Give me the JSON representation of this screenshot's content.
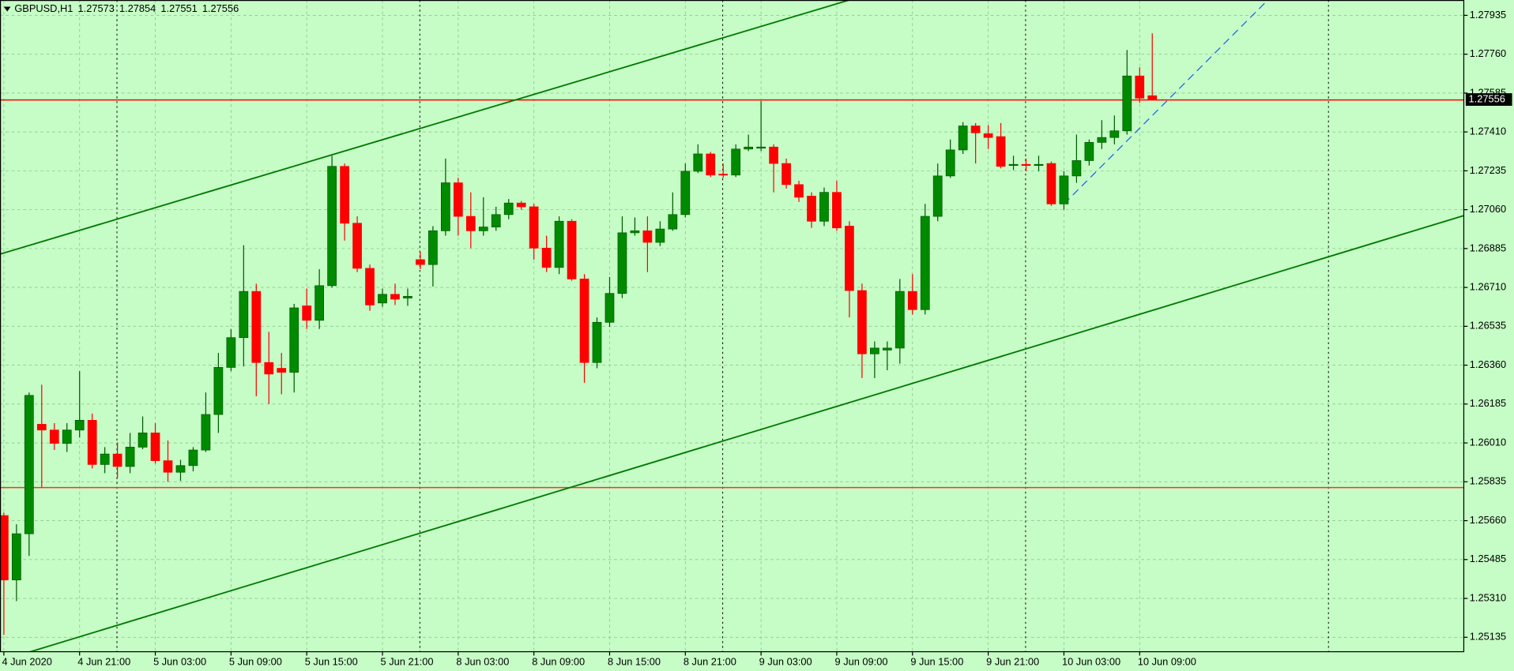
{
  "chart_data": {
    "type": "candlestick",
    "symbol": "GBPUSD,H1",
    "x": [
      "4 Jun 2020",
      null,
      null,
      null,
      null,
      null,
      "4 Jun 21:00",
      null,
      null,
      null,
      null,
      null,
      "5 Jun 03:00",
      null,
      null,
      null,
      null,
      null,
      "5 Jun 09:00",
      null,
      null,
      null,
      null,
      null,
      "5 Jun 15:00",
      null,
      null,
      null,
      null,
      null,
      "5 Jun 21:00",
      null,
      null,
      null,
      null,
      null,
      "8 Jun 03:00",
      null,
      null,
      null,
      null,
      null,
      "8 Jun 09:00",
      null,
      null,
      null,
      null,
      null,
      "8 Jun 15:00",
      null,
      null,
      null,
      null,
      null,
      "8 Jun 21:00",
      null,
      null,
      null,
      null,
      null,
      "9 Jun 03:00",
      null,
      null,
      null,
      null,
      null,
      "9 Jun 09:00",
      null,
      null,
      null,
      null,
      null,
      "9 Jun 15:00",
      null,
      null,
      null,
      null,
      null,
      "9 Jun 21:00",
      null,
      null,
      null,
      null,
      null,
      "10 Jun 03:00",
      null,
      null,
      null,
      null,
      null,
      "10 Jun 09:00",
      null
    ],
    "open": [
      1.25683,
      1.25393,
      1.25601,
      1.26094,
      1.26068,
      1.26008,
      1.26068,
      1.26112,
      1.25913,
      1.2596,
      1.25904,
      1.25991,
      1.26055,
      1.2593,
      1.25878,
      1.25908,
      1.25978,
      1.26138,
      1.2635,
      1.26484,
      1.26692,
      1.26372,
      1.26346,
      1.26328,
      1.26627,
      1.26562,
      1.26718,
      1.27255,
      1.26999,
      1.26796,
      1.2664,
      1.26679,
      1.26662,
      1.26835,
      1.26813,
      1.26965,
      1.27181,
      1.2703,
      1.26965,
      1.26982,
      1.27038,
      1.2709,
      1.27073,
      1.26887,
      1.268,
      1.27008,
      1.26748,
      1.26372,
      1.26553,
      1.26683,
      1.26956,
      1.26965,
      1.26913,
      1.26973,
      1.27038,
      1.27233,
      1.27311,
      1.2722,
      1.27216,
      1.27333,
      1.27337,
      1.27342,
      1.27268,
      1.27173,
      1.27121,
      1.27008,
      1.27138,
      1.26986,
      1.26696,
      1.26411,
      1.26428,
      1.26437,
      1.26692,
      1.2661,
      1.2703,
      1.27212,
      1.27329,
      1.27437,
      1.27402,
      1.27389,
      1.27259,
      1.27264,
      1.27259,
      1.27268,
      1.27086,
      1.27212,
      1.27281,
      1.27363,
      1.27385,
      1.27415,
      1.27662,
      1.27573
    ],
    "high": [
      1.25696,
      1.25644,
      1.26237,
      1.26272,
      1.26099,
      1.26099,
      1.26333,
      1.26142,
      1.25991,
      1.26012,
      1.26055,
      1.26129,
      1.26099,
      1.26021,
      1.25934,
      1.25991,
      1.26237,
      1.26415,
      1.26523,
      1.269,
      1.26727,
      1.2651,
      1.26415,
      1.26636,
      1.26705,
      1.26792,
      1.27303,
      1.27268,
      1.2703,
      1.26813,
      1.26705,
      1.26727,
      1.26705,
      1.2687,
      1.26986,
      1.2729,
      1.27203,
      1.27138,
      1.27116,
      1.27073,
      1.27108,
      1.27099,
      1.27086,
      1.26943,
      1.2703,
      1.27017,
      1.2677,
      1.26575,
      1.26757,
      1.2703,
      1.27025,
      1.2703,
      1.27008,
      1.27138,
      1.27268,
      1.27354,
      1.2732,
      1.27268,
      1.27354,
      1.27398,
      1.27549,
      1.27354,
      1.2729,
      1.2719,
      1.27138,
      1.2716,
      1.2719,
      1.27008,
      1.26727,
      1.26467,
      1.26467,
      1.26748,
      1.2677,
      1.27086,
      1.27268,
      1.27376,
      1.27454,
      1.2745,
      1.27441,
      1.2745,
      1.27303,
      1.2729,
      1.27303,
      1.27277,
      1.27233,
      1.27398,
      1.27376,
      1.27463,
      1.27484,
      1.27779,
      1.27701,
      1.27854
    ],
    "low": [
      1.25146,
      1.25298,
      1.25501,
      1.25809,
      1.25978,
      1.25969,
      1.26034,
      1.25895,
      1.25874,
      1.25852,
      1.25874,
      1.25982,
      1.25917,
      1.25835,
      1.25839,
      1.25882,
      1.25969,
      1.26055,
      1.26333,
      1.26354,
      1.2622,
      1.26185,
      1.26229,
      1.26237,
      1.26523,
      1.26523,
      1.26709,
      1.26921,
      1.26779,
      1.26605,
      1.26623,
      1.26631,
      1.26627,
      1.26792,
      1.26714,
      1.26943,
      1.26943,
      1.26887,
      1.26943,
      1.26965,
      1.27017,
      1.2706,
      1.26835,
      1.26779,
      1.2677,
      1.2674,
      1.26281,
      1.26346,
      1.26532,
      1.26662,
      1.26943,
      1.26779,
      1.26896,
      1.26965,
      1.27025,
      1.27225,
      1.27207,
      1.27203,
      1.27207,
      1.27324,
      1.27324,
      1.27138,
      1.27155,
      1.27095,
      1.26978,
      1.26986,
      1.26965,
      1.26575,
      1.26302,
      1.26302,
      1.26337,
      1.26367,
      1.26588,
      1.26588,
      1.27008,
      1.27203,
      1.27311,
      1.27268,
      1.27333,
      1.27246,
      1.27238,
      1.27233,
      1.27233,
      1.27077,
      1.2706,
      1.27181,
      1.27259,
      1.27333,
      1.27354,
      1.27398,
      1.27541,
      1.27551
    ],
    "close": [
      1.25393,
      1.25601,
      1.26224,
      1.26068,
      1.26008,
      1.26068,
      1.26112,
      1.25913,
      1.2596,
      1.25904,
      1.25991,
      1.26055,
      1.2593,
      1.25878,
      1.25908,
      1.25978,
      1.26138,
      1.2635,
      1.26484,
      1.26692,
      1.26372,
      1.2632,
      1.26328,
      1.26618,
      1.26562,
      1.26718,
      1.27255,
      1.26999,
      1.26796,
      1.26631,
      1.26679,
      1.26657,
      1.2667,
      1.26813,
      1.26965,
      1.27181,
      1.2703,
      1.26965,
      1.26982,
      1.27038,
      1.2709,
      1.27073,
      1.26887,
      1.268,
      1.27008,
      1.26748,
      1.26372,
      1.26553,
      1.26683,
      1.26956,
      1.26965,
      1.26913,
      1.26973,
      1.27038,
      1.27233,
      1.27311,
      1.27216,
      1.27216,
      1.27333,
      1.27342,
      1.27342,
      1.27268,
      1.27173,
      1.27116,
      1.27008,
      1.27138,
      1.26978,
      1.26696,
      1.26411,
      1.26437,
      1.26437,
      1.26692,
      1.2661,
      1.2703,
      1.27212,
      1.27329,
      1.27437,
      1.27406,
      1.27385,
      1.27255,
      1.27264,
      1.27259,
      1.27264,
      1.27086,
      1.27212,
      1.27281,
      1.27363,
      1.27385,
      1.27415,
      1.27662,
      1.27562,
      1.27556
    ],
    "up_color": "#008a00",
    "down_color": "#ff0000",
    "background": "#c6fcc6",
    "ylim": [
      1.2507,
      1.28004
    ],
    "yticks": [
      1.27935,
      {
        "value": 1.2776,
        "label": "1.27760"
      },
      1.27585,
      {
        "value": 1.2741,
        "label": "1.27410"
      },
      1.27235,
      {
        "value": 1.2706,
        "label": "1.27060"
      },
      1.26885,
      {
        "value": 1.2671,
        "label": "1.26710"
      },
      1.26535,
      {
        "value": 1.2636,
        "label": "1.26360"
      },
      1.26185,
      {
        "value": 1.2601,
        "label": "1.26010"
      },
      1.25835,
      {
        "value": 1.2566,
        "label": "1.25660"
      },
      1.25485,
      {
        "value": 1.2531,
        "label": "1.25310"
      },
      1.25135
    ],
    "grid": true,
    "horizontal_lines": [
      {
        "value": 1.27554,
        "color": "#ff0000"
      },
      {
        "value": 1.25809,
        "color": "#ff3030"
      }
    ],
    "trend_lines": [
      {
        "x": [
          12,
          40
        ],
        "y": [
          1.25241,
          1.25725
        ],
        "color": "#007a00",
        "dash": false,
        "extend": "both"
      },
      {
        "x": [
          0,
          40
        ],
        "y": [
          1.26865,
          1.27545
        ],
        "color": "#007a00",
        "dash": false,
        "extend": "both"
      },
      {
        "x": [
          84,
          100
        ],
        "y": [
          1.27086,
          1.27995
        ],
        "color": "#1a5cff",
        "dash": true,
        "extend": "right"
      }
    ]
  }
}
